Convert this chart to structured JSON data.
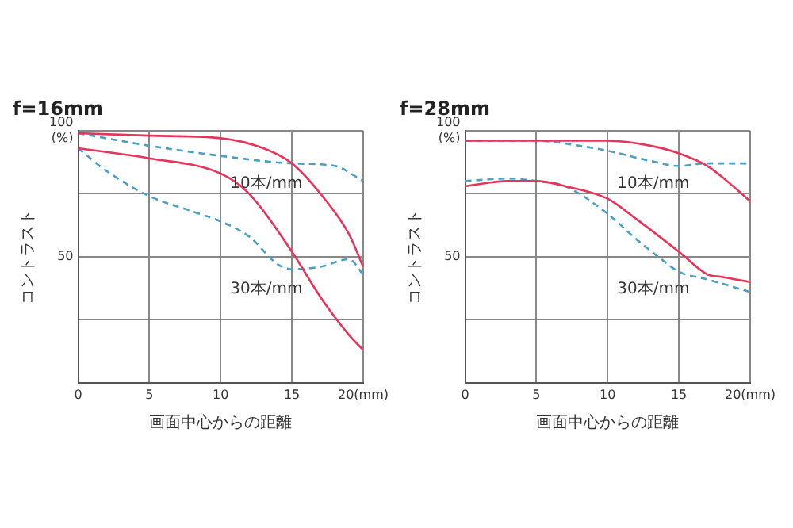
{
  "chart_data": [
    {
      "type": "line",
      "title": "f=16mm",
      "xlabel": "画面中心からの距離",
      "ylabel": "コントラスト",
      "xlim": [
        0,
        20
      ],
      "xticks": [
        0,
        5,
        10,
        15,
        {
          "value": 20,
          "label": "20(mm)"
        }
      ],
      "ylim": [
        0,
        100
      ],
      "yticks": [
        {
          "value": 0,
          "label": null
        },
        {
          "value": 25,
          "label": null
        },
        50,
        {
          "value": 75,
          "label": null
        },
        {
          "value": 100,
          "label": "100\n(%)"
        }
      ],
      "grid": true,
      "legend": false,
      "marker": "none",
      "series": [
        {
          "color": "#e8335a",
          "line_style": "solid",
          "x": [
            0,
            5,
            10,
            13,
            15,
            17,
            19,
            20
          ],
          "values": [
            99,
            98,
            97,
            93,
            87,
            75,
            59,
            46
          ]
        },
        {
          "color": "#e8335a",
          "line_style": "solid",
          "x": [
            0,
            5,
            10,
            12,
            15,
            17,
            19,
            20
          ],
          "values": [
            93,
            89,
            83,
            75,
            52,
            34,
            19,
            13
          ]
        },
        {
          "color": "#4a9fc4",
          "line_style": "dashed",
          "x": [
            0,
            5,
            10,
            15,
            18,
            20
          ],
          "values": [
            99,
            94,
            90,
            87,
            86,
            80
          ]
        },
        {
          "color": "#4a9fc4",
          "line_style": "dashed",
          "x": [
            0,
            2,
            5,
            8,
            10,
            12,
            14,
            15,
            17,
            19,
            20
          ],
          "values": [
            93,
            84,
            74,
            68,
            64,
            58,
            47,
            45,
            46,
            49,
            43
          ]
        }
      ],
      "annotations": [
        "10本/mm",
        "30本/mm"
      ]
    },
    {
      "type": "line",
      "title": "f=28mm",
      "xlabel": "画面中心からの距離",
      "ylabel": "コントラスト",
      "xlim": [
        0,
        20
      ],
      "xticks": [
        0,
        5,
        10,
        15,
        {
          "value": 20,
          "label": "20(mm)"
        }
      ],
      "ylim": [
        0,
        100
      ],
      "yticks": [
        {
          "value": 0,
          "label": null
        },
        {
          "value": 25,
          "label": null
        },
        50,
        {
          "value": 75,
          "label": null
        },
        {
          "value": 100,
          "label": "100\n(%)"
        }
      ],
      "grid": true,
      "legend": false,
      "marker": "none",
      "series": [
        {
          "color": "#e8335a",
          "line_style": "solid",
          "x": [
            0,
            5,
            10,
            13,
            15,
            17,
            19,
            20
          ],
          "values": [
            96,
            96,
            96,
            94,
            91,
            86,
            77,
            72
          ]
        },
        {
          "color": "#4a9fc4",
          "line_style": "dashed",
          "x": [
            0,
            5,
            8,
            10,
            13,
            15,
            17,
            20
          ],
          "values": [
            96,
            96,
            94,
            92,
            88,
            86,
            87,
            87
          ]
        },
        {
          "color": "#e8335a",
          "line_style": "solid",
          "x": [
            0,
            3,
            5,
            7,
            10,
            12,
            15,
            17,
            18,
            20
          ],
          "values": [
            78,
            80,
            80,
            78,
            73,
            65,
            52,
            43,
            42,
            40
          ]
        },
        {
          "color": "#4a9fc4",
          "line_style": "dashed",
          "x": [
            0,
            3,
            5,
            7,
            10,
            12,
            14,
            15,
            17,
            20
          ],
          "values": [
            80,
            81,
            80,
            78,
            67,
            57,
            48,
            44,
            41,
            36
          ]
        }
      ],
      "annotations": [
        "10本/mm",
        "30本/mm"
      ]
    }
  ]
}
